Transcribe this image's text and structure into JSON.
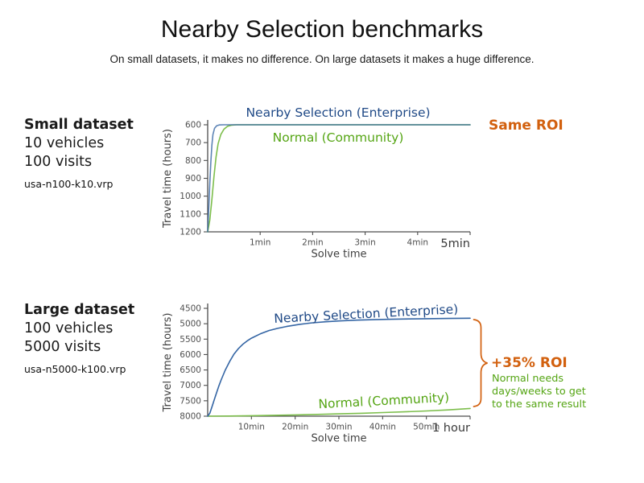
{
  "page": {
    "title": "Nearby Selection benchmarks",
    "subtitle": "On small datasets, it makes no difference. On large datasets it makes a huge difference."
  },
  "colors": {
    "enterprise_line": "#3465a4",
    "enterprise_label": "#204a87",
    "community_line": "#7dbe4c",
    "community_label": "#55a514",
    "roi_accent": "#d2600e",
    "axis": "#4d4d4d",
    "tick_text": "#4f4f4f",
    "tick_text_emphasis": "#3a3a3a",
    "axis_title": "#3f3f3f"
  },
  "panels": [
    {
      "heading": "Small dataset",
      "detail_lines": [
        "10 vehicles",
        "100 visits"
      ],
      "file_name": "usa-n100-k10.vrp",
      "roi_label": "Same ROI"
    },
    {
      "heading": "Large dataset",
      "detail_lines": [
        "100 vehicles",
        "5000 visits"
      ],
      "file_name": "usa-n5000-k100.vrp",
      "roi_label": "+35% ROI",
      "roi_note_lines": [
        "Normal needs",
        "days/weeks to get",
        "to the same result"
      ]
    }
  ],
  "chart_data": [
    {
      "type": "line",
      "title": "",
      "xlabel": "Solve time",
      "ylabel": "Travel time (hours)",
      "xlim": [
        0,
        5
      ],
      "ylim_top_to_bottom": [
        600,
        1200
      ],
      "grid": false,
      "legend": "inline-labels",
      "x_ticks": [
        {
          "value": 1,
          "label": "1min"
        },
        {
          "value": 2,
          "label": "2min"
        },
        {
          "value": 3,
          "label": "3min"
        },
        {
          "value": 4,
          "label": "4min"
        },
        {
          "value": 5,
          "label": "5min",
          "emphasis": true
        }
      ],
      "y_ticks": [
        600,
        700,
        800,
        900,
        1000,
        1100,
        1200
      ],
      "series": [
        {
          "name": "Nearby Selection (Enterprise)",
          "edition": "enterprise",
          "x": [
            0,
            0.02,
            0.04,
            0.06,
            0.08,
            0.1,
            0.13,
            0.17,
            0.22,
            0.3,
            0.5,
            1,
            2,
            3,
            4,
            5
          ],
          "y": [
            1200,
            1070,
            930,
            810,
            715,
            655,
            620,
            606,
            601,
            600,
            600,
            600,
            600,
            600,
            600,
            600
          ]
        },
        {
          "name": "Normal (Community)",
          "edition": "community",
          "x": [
            0,
            0.04,
            0.08,
            0.12,
            0.16,
            0.2,
            0.25,
            0.31,
            0.38,
            0.46,
            0.55,
            0.7,
            1,
            2,
            3,
            4,
            5
          ],
          "y": [
            1200,
            1135,
            1020,
            890,
            780,
            705,
            655,
            625,
            608,
            602,
            600,
            600,
            600,
            600,
            600,
            600,
            600
          ]
        }
      ]
    },
    {
      "type": "line",
      "title": "",
      "xlabel": "Solve time",
      "ylabel": "Travel time (hours)",
      "xlim": [
        0,
        60
      ],
      "ylim_top_to_bottom": [
        4500,
        8000
      ],
      "grid": false,
      "legend": "inline-labels",
      "x_ticks": [
        {
          "value": 10,
          "label": "10min"
        },
        {
          "value": 20,
          "label": "20min"
        },
        {
          "value": 30,
          "label": "30min"
        },
        {
          "value": 40,
          "label": "40min"
        },
        {
          "value": 50,
          "label": "50min"
        },
        {
          "value": 60,
          "label": "1 hour",
          "emphasis": true
        }
      ],
      "y_ticks": [
        4500,
        5000,
        5500,
        6000,
        6500,
        7000,
        7500,
        8000
      ],
      "series": [
        {
          "name": "Nearby Selection (Enterprise)",
          "edition": "enterprise",
          "x": [
            0,
            0.5,
            1,
            1.5,
            2,
            2.5,
            3,
            4,
            5,
            6,
            7,
            8,
            9,
            10,
            12,
            14,
            16,
            18,
            21,
            24,
            27,
            30,
            34,
            38,
            42,
            46,
            50,
            55,
            60
          ],
          "y": [
            8000,
            7900,
            7690,
            7470,
            7250,
            7040,
            6850,
            6510,
            6230,
            5990,
            5810,
            5670,
            5560,
            5470,
            5330,
            5220,
            5150,
            5090,
            5020,
            4970,
            4935,
            4910,
            4885,
            4868,
            4855,
            4845,
            4838,
            4828,
            4820
          ]
        },
        {
          "name": "Normal (Community)",
          "edition": "community",
          "x": [
            0,
            5,
            10,
            15,
            20,
            25,
            30,
            35,
            40,
            45,
            50,
            55,
            60
          ],
          "y": [
            8000,
            7995,
            7985,
            7972,
            7958,
            7942,
            7925,
            7905,
            7882,
            7858,
            7830,
            7795,
            7750
          ]
        }
      ]
    }
  ]
}
